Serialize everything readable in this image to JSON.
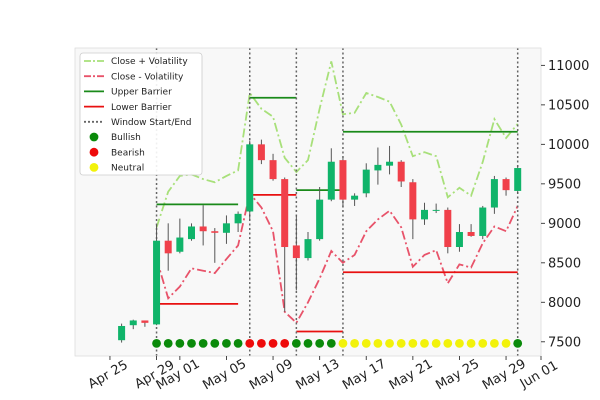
{
  "chart_data": {
    "type": "candlestick",
    "title": "",
    "xlabel": "",
    "ylabel": "",
    "x_tick_labels": [
      "Apr 25",
      "Apr 29",
      "May 01",
      "May 05",
      "May 09",
      "May 13",
      "May 17",
      "May 21",
      "May 25",
      "May 29",
      "Jun 01"
    ],
    "x_tick_dates": [
      "2025-04-25",
      "2025-04-29",
      "2025-05-01",
      "2025-05-05",
      "2025-05-09",
      "2025-05-13",
      "2025-05-17",
      "2025-05-21",
      "2025-05-25",
      "2025-05-29",
      "2025-06-01"
    ],
    "xlim": [
      "2025-04-22",
      "2025-06-01"
    ],
    "y_ticks": [
      7500,
      8000,
      8500,
      9000,
      9500,
      10000,
      10500,
      11000
    ],
    "ylim": [
      7320,
      11220
    ],
    "y_axis_side": "right",
    "grid": false,
    "legend_position": "top-left",
    "legend": [
      {
        "label": "Close + Volatility",
        "style": "dash-dot",
        "color": "#a8e07a"
      },
      {
        "label": "Close - Volatility",
        "style": "dash-dot",
        "color": "#e8536a"
      },
      {
        "label": "Upper Barrier",
        "style": "solid",
        "color": "#1a8a1a"
      },
      {
        "label": "Lower Barrier",
        "style": "solid",
        "color": "#e81010"
      },
      {
        "label": "Window Start/End",
        "style": "dotted",
        "color": "#666666"
      },
      {
        "label": "Bullish",
        "style": "marker",
        "color": "#0a8a0a"
      },
      {
        "label": "Bearish",
        "style": "marker",
        "color": "#ee0a0a"
      },
      {
        "label": "Neutral",
        "style": "marker",
        "color": "#f2f20a"
      }
    ],
    "colors": {
      "up": "#10b46a",
      "down": "#f0404a",
      "upper_band": "#a8e07a",
      "lower_band": "#e8536a"
    },
    "candles": [
      {
        "date": "2025-04-26",
        "open": 7520,
        "high": 7730,
        "low": 7490,
        "close": 7700
      },
      {
        "date": "2025-04-27",
        "open": 7710,
        "high": 7780,
        "low": 7660,
        "close": 7770
      },
      {
        "date": "2025-04-28",
        "open": 7770,
        "high": 7770,
        "low": 7690,
        "close": 7740
      },
      {
        "date": "2025-04-29",
        "open": 7720,
        "high": 8980,
        "low": 7710,
        "close": 8780
      },
      {
        "date": "2025-04-30",
        "open": 8780,
        "high": 9000,
        "low": 8400,
        "close": 8620
      },
      {
        "date": "2025-05-01",
        "open": 8640,
        "high": 9060,
        "low": 8620,
        "close": 8820
      },
      {
        "date": "2025-05-02",
        "open": 8800,
        "high": 9000,
        "low": 8780,
        "close": 8960
      },
      {
        "date": "2025-05-03",
        "open": 8960,
        "high": 9230,
        "low": 8720,
        "close": 8900
      },
      {
        "date": "2025-05-04",
        "open": 8900,
        "high": 8940,
        "low": 8500,
        "close": 8880
      },
      {
        "date": "2025-05-05",
        "open": 8880,
        "high": 9100,
        "low": 8740,
        "close": 9000
      },
      {
        "date": "2025-05-06",
        "open": 9000,
        "high": 9150,
        "low": 8890,
        "close": 9120
      },
      {
        "date": "2025-05-07",
        "open": 9150,
        "high": 10050,
        "low": 9050,
        "close": 10000
      },
      {
        "date": "2025-05-08",
        "open": 10000,
        "high": 10060,
        "low": 9750,
        "close": 9800
      },
      {
        "date": "2025-05-09",
        "open": 9800,
        "high": 9880,
        "low": 9540,
        "close": 9560
      },
      {
        "date": "2025-05-10",
        "open": 9560,
        "high": 9580,
        "low": 7880,
        "close": 8700
      },
      {
        "date": "2025-05-11",
        "open": 8720,
        "high": 9100,
        "low": 8150,
        "close": 8560
      },
      {
        "date": "2025-05-12",
        "open": 8560,
        "high": 8890,
        "low": 8530,
        "close": 8800
      },
      {
        "date": "2025-05-13",
        "open": 8800,
        "high": 9460,
        "low": 8780,
        "close": 9300
      },
      {
        "date": "2025-05-14",
        "open": 9300,
        "high": 9950,
        "low": 9280,
        "close": 9780
      },
      {
        "date": "2025-05-15",
        "open": 9800,
        "high": 9830,
        "low": 9200,
        "close": 9300
      },
      {
        "date": "2025-05-16",
        "open": 9300,
        "high": 9380,
        "low": 9220,
        "close": 9350
      },
      {
        "date": "2025-05-17",
        "open": 9380,
        "high": 9760,
        "low": 9330,
        "close": 9680
      },
      {
        "date": "2025-05-18",
        "open": 9670,
        "high": 9960,
        "low": 9490,
        "close": 9740
      },
      {
        "date": "2025-05-19",
        "open": 9730,
        "high": 9980,
        "low": 9620,
        "close": 9780
      },
      {
        "date": "2025-05-20",
        "open": 9780,
        "high": 9800,
        "low": 9460,
        "close": 9530
      },
      {
        "date": "2025-05-21",
        "open": 9520,
        "high": 9560,
        "low": 8800,
        "close": 9050
      },
      {
        "date": "2025-05-22",
        "open": 9050,
        "high": 9260,
        "low": 8980,
        "close": 9170
      },
      {
        "date": "2025-05-23",
        "open": 9170,
        "high": 9250,
        "low": 9130,
        "close": 9170
      },
      {
        "date": "2025-05-24",
        "open": 9170,
        "high": 9200,
        "low": 8620,
        "close": 8700
      },
      {
        "date": "2025-05-25",
        "open": 8700,
        "high": 8990,
        "low": 8640,
        "close": 8890
      },
      {
        "date": "2025-05-26",
        "open": 8890,
        "high": 8990,
        "low": 8830,
        "close": 8840
      },
      {
        "date": "2025-05-27",
        "open": 8840,
        "high": 9220,
        "low": 8800,
        "close": 9200
      },
      {
        "date": "2025-05-28",
        "open": 9200,
        "high": 9600,
        "low": 9120,
        "close": 9560
      },
      {
        "date": "2025-05-29",
        "open": 9560,
        "high": 9580,
        "low": 9350,
        "close": 9420
      },
      {
        "date": "2025-05-30",
        "open": 9410,
        "high": 9720,
        "low": 9380,
        "close": 9700
      }
    ],
    "close_plus_volatility": [
      {
        "date": "2025-04-29",
        "value": 8950
      },
      {
        "date": "2025-04-30",
        "value": 9400
      },
      {
        "date": "2025-05-01",
        "value": 9600
      },
      {
        "date": "2025-05-02",
        "value": 9620
      },
      {
        "date": "2025-05-03",
        "value": 9560
      },
      {
        "date": "2025-05-04",
        "value": 9520
      },
      {
        "date": "2025-05-05",
        "value": 9600
      },
      {
        "date": "2025-05-06",
        "value": 9670
      },
      {
        "date": "2025-05-07",
        "value": 10650
      },
      {
        "date": "2025-05-08",
        "value": 10450
      },
      {
        "date": "2025-05-09",
        "value": 10350
      },
      {
        "date": "2025-05-10",
        "value": 9830
      },
      {
        "date": "2025-05-11",
        "value": 9650
      },
      {
        "date": "2025-05-12",
        "value": 9800
      },
      {
        "date": "2025-05-13",
        "value": 10450
      },
      {
        "date": "2025-05-14",
        "value": 11050
      },
      {
        "date": "2025-05-15",
        "value": 10380
      },
      {
        "date": "2025-05-16",
        "value": 10400
      },
      {
        "date": "2025-05-17",
        "value": 10650
      },
      {
        "date": "2025-05-18",
        "value": 10600
      },
      {
        "date": "2025-05-19",
        "value": 10540
      },
      {
        "date": "2025-05-20",
        "value": 10250
      },
      {
        "date": "2025-05-21",
        "value": 9850
      },
      {
        "date": "2025-05-22",
        "value": 9900
      },
      {
        "date": "2025-05-23",
        "value": 9850
      },
      {
        "date": "2025-05-24",
        "value": 9330
      },
      {
        "date": "2025-05-25",
        "value": 9450
      },
      {
        "date": "2025-05-26",
        "value": 9350
      },
      {
        "date": "2025-05-27",
        "value": 9780
      },
      {
        "date": "2025-05-28",
        "value": 10320
      },
      {
        "date": "2025-05-29",
        "value": 10080
      },
      {
        "date": "2025-05-30",
        "value": 10260
      }
    ],
    "close_minus_volatility": [
      {
        "date": "2025-04-29",
        "value": 8550
      },
      {
        "date": "2025-04-30",
        "value": 8050
      },
      {
        "date": "2025-05-01",
        "value": 8200
      },
      {
        "date": "2025-05-02",
        "value": 8430
      },
      {
        "date": "2025-05-03",
        "value": 8400
      },
      {
        "date": "2025-05-04",
        "value": 8370
      },
      {
        "date": "2025-05-05",
        "value": 8550
      },
      {
        "date": "2025-05-06",
        "value": 8720
      },
      {
        "date": "2025-05-07",
        "value": 9380
      },
      {
        "date": "2025-05-08",
        "value": 9200
      },
      {
        "date": "2025-05-09",
        "value": 8900
      },
      {
        "date": "2025-05-10",
        "value": 7880
      },
      {
        "date": "2025-05-11",
        "value": 7740
      },
      {
        "date": "2025-05-12",
        "value": 8000
      },
      {
        "date": "2025-05-13",
        "value": 8300
      },
      {
        "date": "2025-05-14",
        "value": 8650
      },
      {
        "date": "2025-05-15",
        "value": 8500
      },
      {
        "date": "2025-05-16",
        "value": 8600
      },
      {
        "date": "2025-05-17",
        "value": 8900
      },
      {
        "date": "2025-05-18",
        "value": 9050
      },
      {
        "date": "2025-05-19",
        "value": 9160
      },
      {
        "date": "2025-05-20",
        "value": 8950
      },
      {
        "date": "2025-05-21",
        "value": 8450
      },
      {
        "date": "2025-05-22",
        "value": 8600
      },
      {
        "date": "2025-05-23",
        "value": 8660
      },
      {
        "date": "2025-05-24",
        "value": 8240
      },
      {
        "date": "2025-05-25",
        "value": 8480
      },
      {
        "date": "2025-05-26",
        "value": 8440
      },
      {
        "date": "2025-05-27",
        "value": 8750
      },
      {
        "date": "2025-05-28",
        "value": 8960
      },
      {
        "date": "2025-05-29",
        "value": 8900
      },
      {
        "date": "2025-05-30",
        "value": 9220
      }
    ],
    "upper_barrier": [
      {
        "start": "2025-04-29",
        "end": "2025-05-06",
        "value": 9240
      },
      {
        "start": "2025-05-07",
        "end": "2025-05-11",
        "value": 10590
      },
      {
        "start": "2025-05-11",
        "end": "2025-05-15",
        "value": 9420
      },
      {
        "start": "2025-05-15",
        "end": "2025-05-30",
        "value": 10160
      }
    ],
    "lower_barrier": [
      {
        "start": "2025-04-29",
        "end": "2025-05-06",
        "value": 7980
      },
      {
        "start": "2025-05-07",
        "end": "2025-05-11",
        "value": 9360
      },
      {
        "start": "2025-05-11",
        "end": "2025-05-15",
        "value": 7630
      },
      {
        "start": "2025-05-15",
        "end": "2025-05-30",
        "value": 8380
      }
    ],
    "window_markers": [
      "2025-04-29",
      "2025-05-07",
      "2025-05-11",
      "2025-05-15",
      "2025-05-30"
    ],
    "signals": [
      {
        "date": "2025-04-29",
        "label": "Bullish"
      },
      {
        "date": "2025-04-30",
        "label": "Bullish"
      },
      {
        "date": "2025-05-01",
        "label": "Bullish"
      },
      {
        "date": "2025-05-02",
        "label": "Bullish"
      },
      {
        "date": "2025-05-03",
        "label": "Bullish"
      },
      {
        "date": "2025-05-04",
        "label": "Bullish"
      },
      {
        "date": "2025-05-05",
        "label": "Bullish"
      },
      {
        "date": "2025-05-06",
        "label": "Bullish"
      },
      {
        "date": "2025-05-07",
        "label": "Bearish"
      },
      {
        "date": "2025-05-08",
        "label": "Bearish"
      },
      {
        "date": "2025-05-09",
        "label": "Bearish"
      },
      {
        "date": "2025-05-10",
        "label": "Bearish"
      },
      {
        "date": "2025-05-11",
        "label": "Bullish"
      },
      {
        "date": "2025-05-12",
        "label": "Bullish"
      },
      {
        "date": "2025-05-13",
        "label": "Bullish"
      },
      {
        "date": "2025-05-14",
        "label": "Bullish"
      },
      {
        "date": "2025-05-15",
        "label": "Neutral"
      },
      {
        "date": "2025-05-16",
        "label": "Neutral"
      },
      {
        "date": "2025-05-17",
        "label": "Neutral"
      },
      {
        "date": "2025-05-18",
        "label": "Neutral"
      },
      {
        "date": "2025-05-19",
        "label": "Neutral"
      },
      {
        "date": "2025-05-20",
        "label": "Neutral"
      },
      {
        "date": "2025-05-21",
        "label": "Neutral"
      },
      {
        "date": "2025-05-22",
        "label": "Neutral"
      },
      {
        "date": "2025-05-23",
        "label": "Neutral"
      },
      {
        "date": "2025-05-24",
        "label": "Neutral"
      },
      {
        "date": "2025-05-25",
        "label": "Neutral"
      },
      {
        "date": "2025-05-26",
        "label": "Neutral"
      },
      {
        "date": "2025-05-27",
        "label": "Neutral"
      },
      {
        "date": "2025-05-28",
        "label": "Neutral"
      },
      {
        "date": "2025-05-29",
        "label": "Neutral"
      },
      {
        "date": "2025-05-30",
        "label": "Bullish"
      }
    ],
    "signal_marker_level": 7480
  }
}
